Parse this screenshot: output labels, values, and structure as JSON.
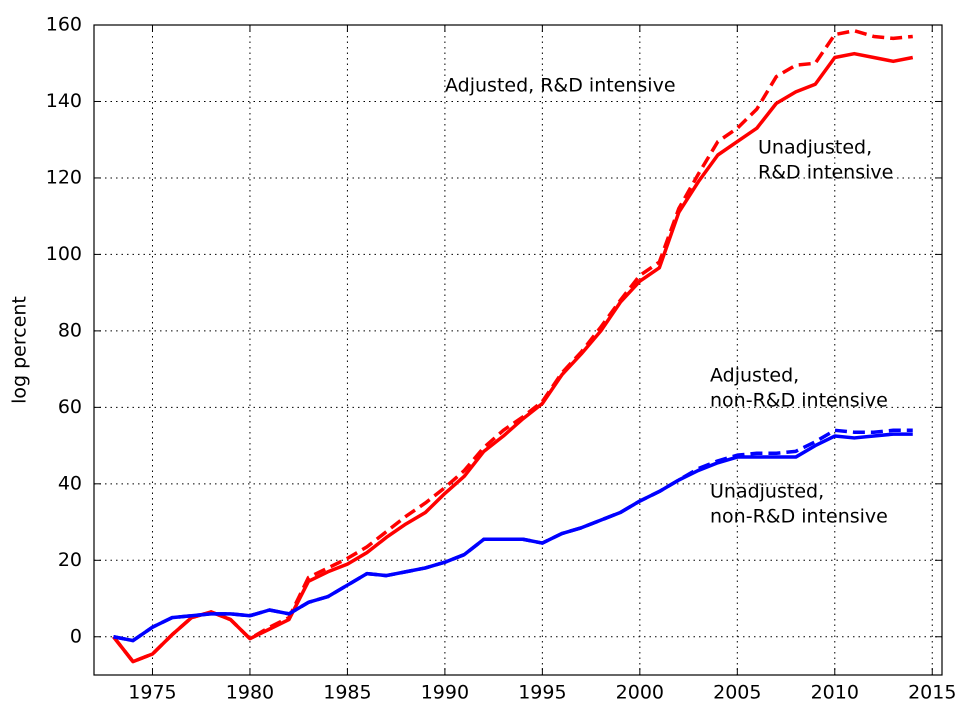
{
  "chart_data": {
    "type": "line",
    "ylabel": "log percent",
    "x": [
      1973,
      1974,
      1975,
      1976,
      1977,
      1978,
      1979,
      1980,
      1981,
      1982,
      1983,
      1984,
      1985,
      1986,
      1987,
      1988,
      1989,
      1990,
      1991,
      1992,
      1993,
      1994,
      1995,
      1996,
      1997,
      1998,
      1999,
      2000,
      2001,
      2002,
      2003,
      2004,
      2005,
      2006,
      2007,
      2008,
      2009,
      2010,
      2011,
      2012,
      2013,
      2014
    ],
    "series": [
      {
        "color": "#ff0000",
        "dashed": false,
        "values": [
          0,
          -6.5,
          -4.5,
          0.5,
          5,
          6.5,
          4.5,
          -0.5,
          2,
          4.5,
          14.5,
          17,
          19,
          22,
          26,
          29.5,
          32.5,
          37.5,
          42,
          48.5,
          52.5,
          57,
          61,
          68.5,
          74,
          80,
          87.5,
          93,
          96.5,
          111,
          119,
          126,
          129.5,
          133,
          139.5,
          142.5,
          144.5,
          151.5,
          152.5,
          151.5,
          150.5,
          151.5
        ]
      },
      {
        "color": "#ff0000",
        "dashed": true,
        "values": [
          0,
          -6.5,
          -4.5,
          0.5,
          5,
          6.5,
          4.5,
          -0.5,
          2.5,
          5,
          15.5,
          18,
          20.5,
          23.5,
          27.5,
          31.5,
          35,
          39,
          43.5,
          49.5,
          54,
          57.5,
          61.5,
          69,
          74.5,
          81,
          88,
          94.5,
          98,
          112,
          121,
          129.5,
          133,
          138,
          146.5,
          149.5,
          150,
          157.5,
          158.5,
          157,
          156.5,
          157
        ]
      },
      {
        "color": "#0000ff",
        "dashed": false,
        "values": [
          0,
          -1,
          2.5,
          5,
          5.5,
          6,
          6,
          5.5,
          7,
          6,
          9,
          10.5,
          13.5,
          16.5,
          16,
          17,
          18,
          19.5,
          21.5,
          25.5,
          25.5,
          25.5,
          24.5,
          27,
          28.5,
          30.5,
          32.5,
          35.5,
          38,
          41,
          43.5,
          45.5,
          47,
          47,
          47,
          47,
          50,
          52.5,
          52,
          52.5,
          53,
          53
        ]
      },
      {
        "color": "#0000ff",
        "dashed": true,
        "values": [
          0,
          -1,
          2.5,
          5,
          5.5,
          6,
          6,
          5.5,
          7,
          6,
          9,
          10.5,
          13.5,
          16.5,
          16,
          17,
          18,
          19.5,
          21.5,
          25.5,
          25.5,
          25.5,
          24.5,
          27,
          28.5,
          30.5,
          32.5,
          35.5,
          38,
          41,
          44,
          46,
          47.5,
          48,
          48,
          48.5,
          51,
          54,
          53.5,
          53.5,
          54,
          54
        ]
      }
    ],
    "annotations": [
      [
        "Adjusted, R&D intensive"
      ],
      [
        "Unadjusted,",
        "R&D intensive"
      ],
      [
        "Adjusted,",
        "non-R&D intensive"
      ],
      [
        "Unadjusted,",
        "non-R&D intensive"
      ]
    ],
    "xlim": [
      1972,
      2015.5
    ],
    "ylim": [
      -10,
      160
    ],
    "xticks": [
      1975,
      1980,
      1985,
      1990,
      1995,
      2000,
      2005,
      2010,
      2015
    ],
    "yticks": [
      0,
      20,
      40,
      60,
      80,
      100,
      120,
      140,
      160
    ],
    "grid": true
  }
}
